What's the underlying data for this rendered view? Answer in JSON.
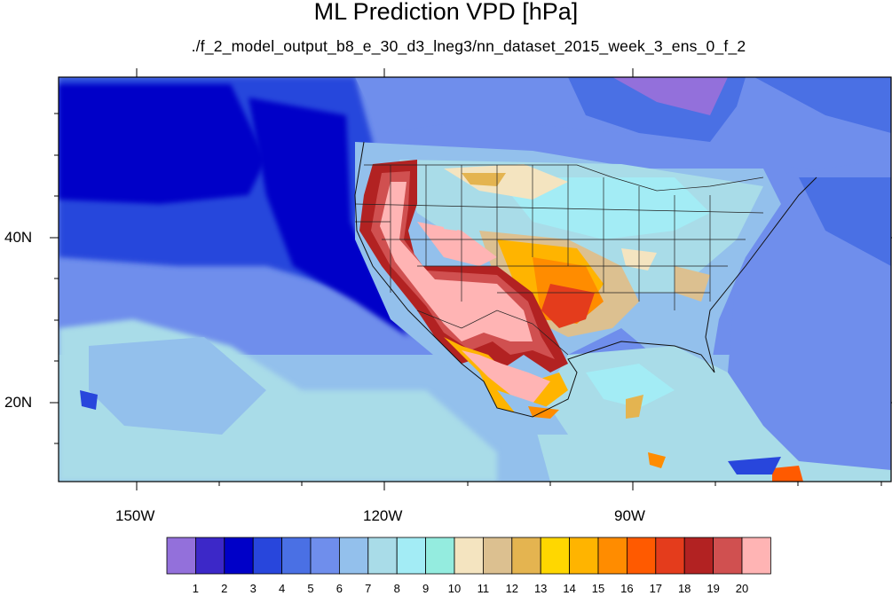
{
  "title": "ML Prediction VPD [hPa]",
  "subtitle": "./f_2_model_output_b8_e_30_d3_lneg3/nn_dataset_2015_week_3_ens_0_f_2",
  "axes": {
    "lat_labels": [
      "40N",
      "20N"
    ],
    "lon_labels": [
      "150W",
      "120W",
      "90W"
    ]
  },
  "colorbar": {
    "labels": [
      "1",
      "2",
      "3",
      "4",
      "5",
      "6",
      "7",
      "8",
      "9",
      "10",
      "11",
      "12",
      "13",
      "14",
      "15",
      "16",
      "17",
      "18",
      "19",
      "20"
    ],
    "colors": [
      "#9370db",
      "#3c28c8",
      "#0000c8",
      "#2846dc",
      "#4a70e4",
      "#6f8eec",
      "#93c0ec",
      "#a9dce8",
      "#a3ecf5",
      "#94ecdf",
      "#f4e4c0",
      "#dcc090",
      "#e4b450",
      "#ffd700",
      "#ffb400",
      "#ff8c00",
      "#ff5a00",
      "#e43c1c",
      "#b22222",
      "#d05050",
      "#ffb4b4"
    ]
  }
}
